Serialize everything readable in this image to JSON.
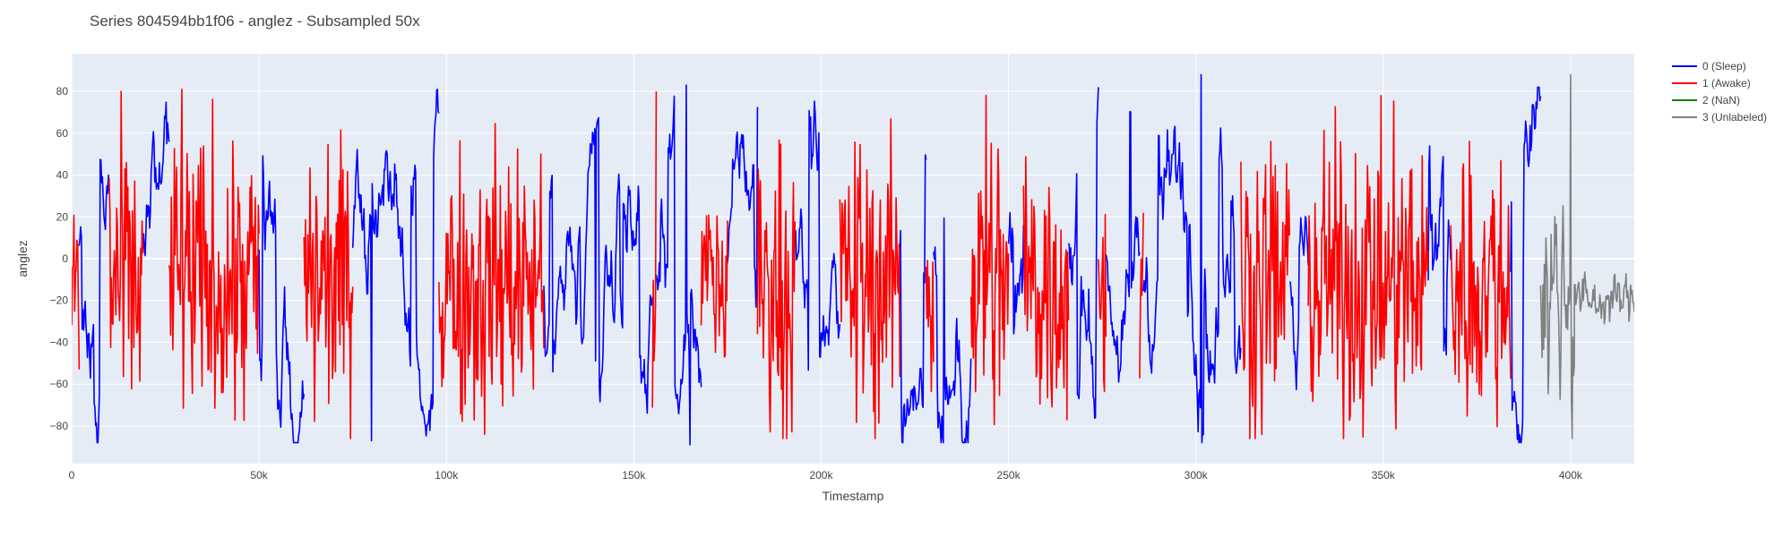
{
  "chart_data": {
    "type": "line",
    "title": "Series 804594bb1f06 - anglez - Subsampled 50x",
    "xlabel": "Timestamp",
    "ylabel": "anglez",
    "xlim": [
      0,
      417000
    ],
    "ylim": [
      -98,
      98
    ],
    "x_ticks": [
      0,
      50000,
      100000,
      150000,
      200000,
      250000,
      300000,
      350000,
      400000
    ],
    "x_tick_labels": [
      "0",
      "50k",
      "100k",
      "150k",
      "200k",
      "250k",
      "300k",
      "350k",
      "400k"
    ],
    "y_ticks": [
      -80,
      -60,
      -40,
      -20,
      0,
      20,
      40,
      60,
      80
    ],
    "y_tick_labels": [
      "−80",
      "−60",
      "−40",
      "−20",
      "0",
      "20",
      "40",
      "60",
      "80"
    ],
    "grid": true,
    "legend_position": "top-right",
    "background_color": "#e5ecf6",
    "series": [
      {
        "name": "0 (Sleep)",
        "color": "#0000ff",
        "segments": [
          [
            2000,
            10000
          ],
          [
            19000,
            26000
          ],
          [
            50000,
            62000
          ],
          [
            75000,
            98000
          ],
          [
            126000,
            155000
          ],
          [
            156000,
            168000
          ],
          [
            175000,
            183000
          ],
          [
            193000,
            205000
          ],
          [
            221000,
            228000
          ],
          [
            230000,
            240000
          ],
          [
            250000,
            254000
          ],
          [
            266000,
            274000
          ],
          [
            276000,
            285000
          ],
          [
            286000,
            312000
          ],
          [
            325000,
            330000
          ],
          [
            362000,
            368000
          ],
          [
            384000,
            392000
          ]
        ]
      },
      {
        "name": "1 (Awake)",
        "color": "#ff0000",
        "segments": [
          [
            0,
            2000
          ],
          [
            10000,
            19000
          ],
          [
            26000,
            50000
          ],
          [
            62000,
            75000
          ],
          [
            98000,
            126000
          ],
          [
            155000,
            156000
          ],
          [
            168000,
            175000
          ],
          [
            183000,
            193000
          ],
          [
            205000,
            221000
          ],
          [
            228000,
            230000
          ],
          [
            240000,
            250000
          ],
          [
            254000,
            266000
          ],
          [
            274000,
            276000
          ],
          [
            285000,
            286000
          ],
          [
            312000,
            325000
          ],
          [
            330000,
            362000
          ],
          [
            368000,
            384000
          ]
        ]
      },
      {
        "name": "2 (NaN)",
        "color": "#008000",
        "segments": []
      },
      {
        "name": "3 (Unlabeled)",
        "color": "#808080",
        "segments": [
          [
            392000,
            417000
          ]
        ]
      }
    ],
    "annotated_points": [
      {
        "x": 29500,
        "y": 81
      },
      {
        "x": 80000,
        "y": -87
      },
      {
        "x": 164000,
        "y": 83
      },
      {
        "x": 165000,
        "y": -89
      },
      {
        "x": 244000,
        "y": 78
      },
      {
        "x": 301500,
        "y": 88
      },
      {
        "x": 400000,
        "y": 88
      },
      {
        "x": 400500,
        "y": -86
      }
    ]
  }
}
